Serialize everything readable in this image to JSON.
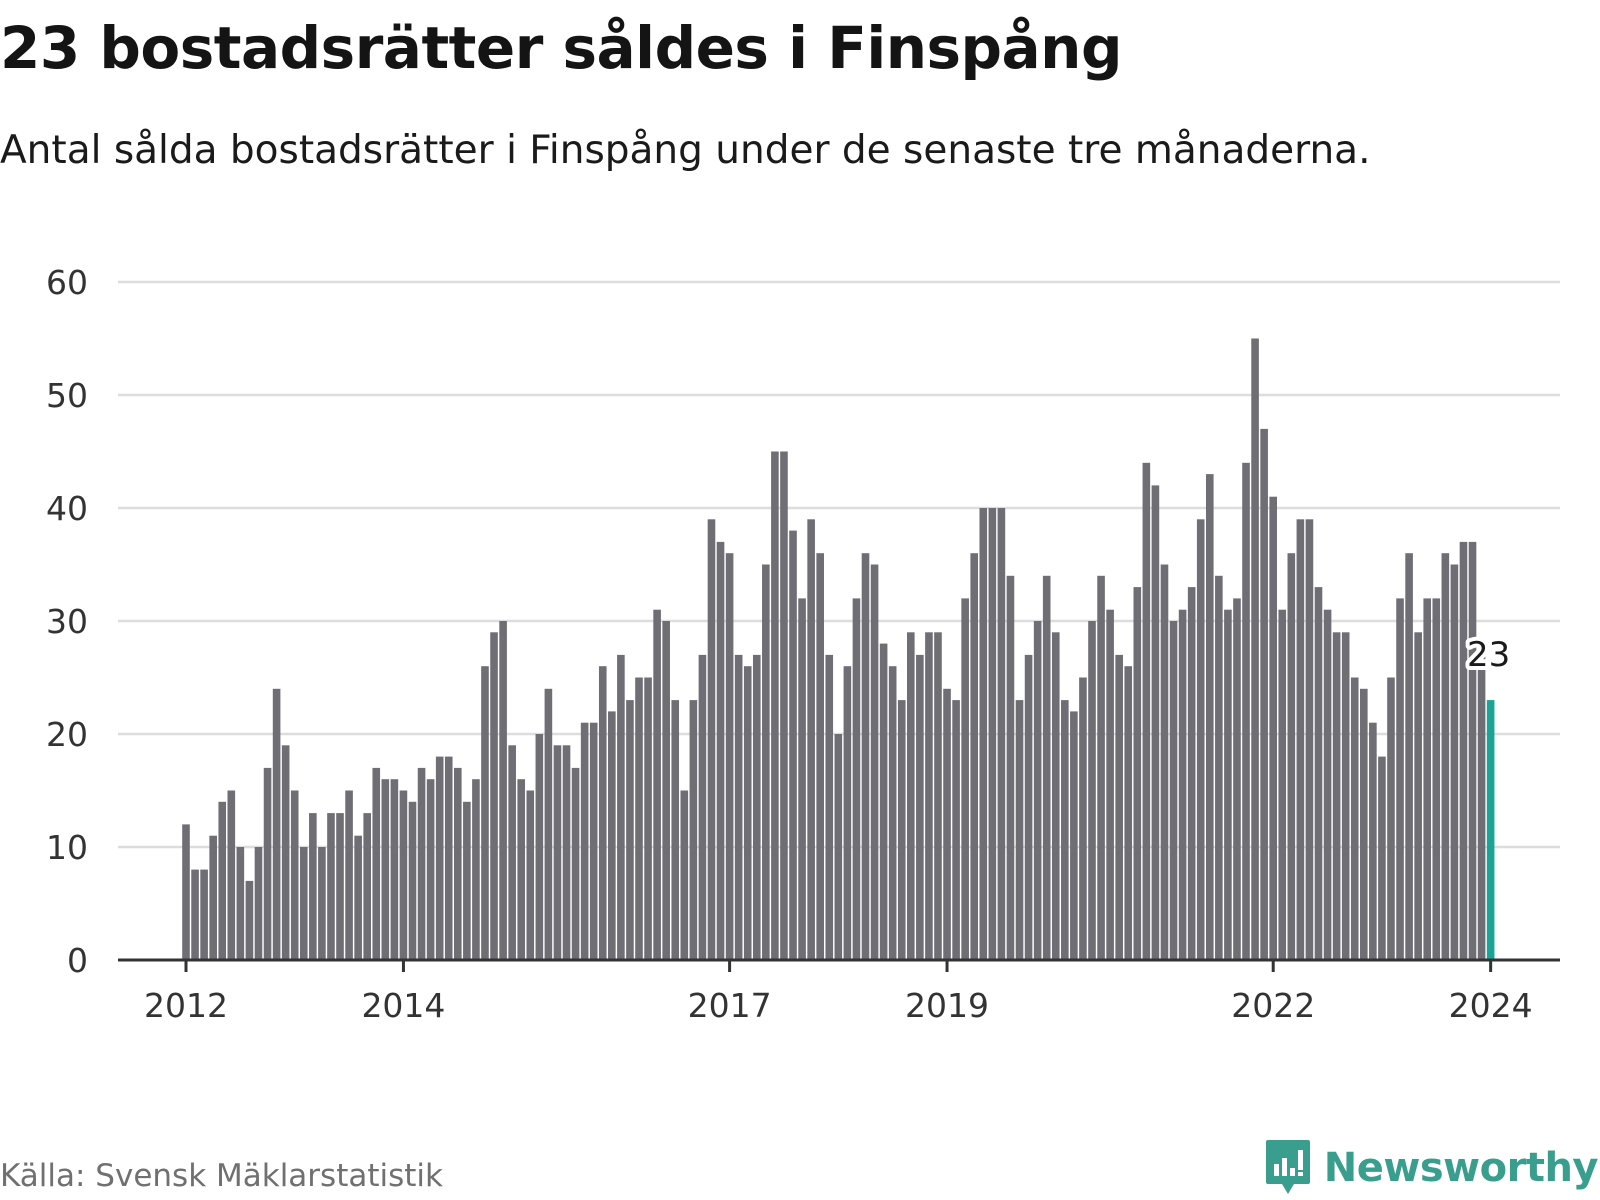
{
  "title": "23 bostadsrätter såldes i Finspång",
  "subtitle": "Antal sålda bostadsrätter i Finspång under de senaste tre månaderna.",
  "source": "Källa: Svensk Mäklarstatistik",
  "brand": {
    "name": "Newsworthy",
    "logo_icon": "bar-chart-speech-bubble-icon"
  },
  "colors": {
    "bar": "#6e6e74",
    "highlight": "#1aa396",
    "grid": "#dddddd",
    "axis": "#333333",
    "text": "#333333",
    "brand": "#3a9e8f"
  },
  "chart_data": {
    "type": "bar",
    "title": "23 bostadsrätter såldes i Finspång",
    "xlabel": "",
    "ylabel": "",
    "ylim": [
      0,
      60
    ],
    "yticks": [
      0,
      10,
      20,
      30,
      40,
      50,
      60
    ],
    "grid": true,
    "start": "2012-01",
    "frequency": "monthly",
    "xticks": [
      {
        "label": "2012",
        "index": 0
      },
      {
        "label": "2014",
        "index": 24
      },
      {
        "label": "2017",
        "index": 60
      },
      {
        "label": "2019",
        "index": 84
      },
      {
        "label": "2022",
        "index": 120
      },
      {
        "label": "2024",
        "index": 144
      }
    ],
    "values": [
      12,
      8,
      8,
      11,
      14,
      15,
      10,
      7,
      10,
      17,
      24,
      19,
      15,
      10,
      13,
      10,
      13,
      13,
      15,
      11,
      13,
      17,
      16,
      16,
      15,
      14,
      17,
      16,
      18,
      18,
      17,
      14,
      16,
      26,
      29,
      30,
      19,
      16,
      15,
      20,
      24,
      19,
      19,
      17,
      21,
      21,
      26,
      22,
      27,
      23,
      25,
      25,
      31,
      30,
      23,
      15,
      23,
      27,
      39,
      37,
      36,
      27,
      26,
      27,
      35,
      45,
      45,
      38,
      32,
      39,
      36,
      27,
      20,
      26,
      32,
      36,
      35,
      28,
      26,
      23,
      29,
      27,
      29,
      29,
      24,
      23,
      32,
      36,
      40,
      40,
      40,
      34,
      23,
      27,
      30,
      34,
      29,
      23,
      22,
      25,
      30,
      34,
      31,
      27,
      26,
      33,
      44,
      42,
      35,
      30,
      31,
      33,
      39,
      43,
      34,
      31,
      32,
      44,
      55,
      47,
      41,
      31,
      36,
      39,
      39,
      33,
      31,
      29,
      29,
      25,
      24,
      21,
      18,
      25,
      32,
      36,
      29,
      32,
      32,
      36,
      35,
      37,
      37,
      28,
      23
    ],
    "highlight_index": 144,
    "annotation": {
      "label": "23",
      "index": 144
    }
  }
}
